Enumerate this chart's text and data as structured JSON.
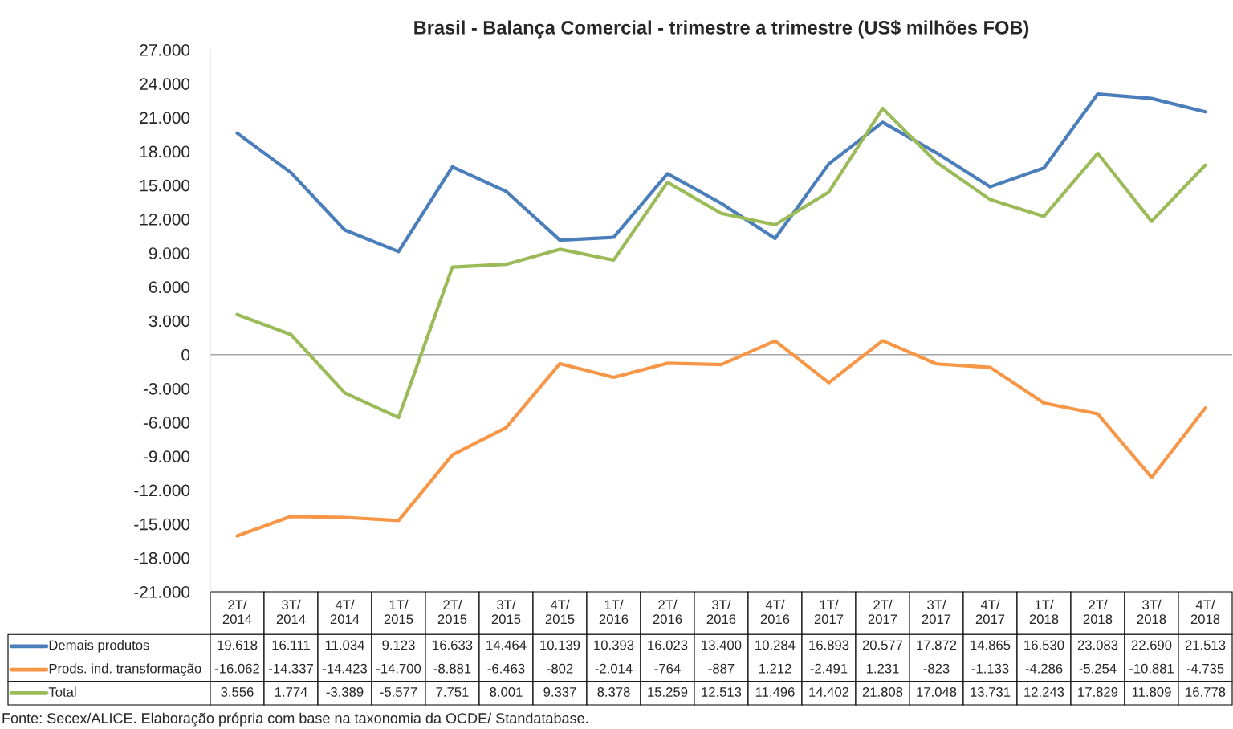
{
  "chart_data": {
    "type": "line",
    "title": "Brasil - Balança Comercial - trimestre a trimestre (US$ milhões FOB)",
    "categories": [
      "2T/\n2014",
      "3T/\n2014",
      "4T/\n2014",
      "1T/\n2015",
      "2T/\n2015",
      "3T/\n2015",
      "4T/\n2015",
      "1T/\n2016",
      "2T/\n2016",
      "3T/\n2016",
      "4T/\n2016",
      "1T/\n2017",
      "2T/\n2017",
      "3T/\n2017",
      "4T/\n2017",
      "1T/\n2018",
      "2T/\n2018",
      "3T/\n2018",
      "4T/\n2018"
    ],
    "series": [
      {
        "name": "Demais produtos",
        "color": "#4a7ebb",
        "values": [
          19618,
          16111,
          11034,
          9123,
          16633,
          14464,
          10139,
          10393,
          16023,
          13400,
          10284,
          16893,
          20577,
          17872,
          14865,
          16530,
          23083,
          22690,
          21513
        ],
        "value_labels": [
          "19.618",
          "16.111",
          "11.034",
          "9.123",
          "16.633",
          "14.464",
          "10.139",
          "10.393",
          "16.023",
          "13.400",
          "10.284",
          "16.893",
          "20.577",
          "17.872",
          "14.865",
          "16.530",
          "23.083",
          "22.690",
          "21.513"
        ]
      },
      {
        "name": "Prods. ind. transformação",
        "color": "#f79646",
        "values": [
          -16062,
          -14337,
          -14423,
          -14700,
          -8881,
          -6463,
          -802,
          -2014,
          -764,
          -887,
          1212,
          -2491,
          1231,
          -823,
          -1133,
          -4286,
          -5254,
          -10881,
          -4735
        ],
        "value_labels": [
          "-16.062",
          "-14.337",
          "-14.423",
          "-14.700",
          "-8.881",
          "-6.463",
          "-802",
          "-2.014",
          "-764",
          "-887",
          "1.212",
          "-2.491",
          "1.231",
          "-823",
          "-1.133",
          "-4.286",
          "-5.254",
          "-10.881",
          "-4.735"
        ]
      },
      {
        "name": "Total",
        "color": "#9bbb59",
        "values": [
          3556,
          1774,
          -3389,
          -5577,
          7751,
          8001,
          9337,
          8378,
          15259,
          12513,
          11496,
          14402,
          21808,
          17048,
          13731,
          12243,
          17829,
          11809,
          16778
        ],
        "value_labels": [
          "3.556",
          "1.774",
          "-3.389",
          "-5.577",
          "7.751",
          "8.001",
          "9.337",
          "8.378",
          "15.259",
          "12.513",
          "11.496",
          "14.402",
          "21.808",
          "17.048",
          "13.731",
          "12.243",
          "17.829",
          "11.809",
          "16.778"
        ]
      }
    ],
    "ylim": [
      -21000,
      27000
    ],
    "yticks": [
      {
        "value": -21000,
        "label": "-21.000"
      },
      {
        "value": -18000,
        "label": "-18.000"
      },
      {
        "value": -15000,
        "label": "-15.000"
      },
      {
        "value": -12000,
        "label": "-12.000"
      },
      {
        "value": -9000,
        "label": "-9.000"
      },
      {
        "value": -6000,
        "label": "-6.000"
      },
      {
        "value": -3000,
        "label": "-3.000"
      },
      0,
      {
        "value": 3000,
        "label": "3.000"
      },
      {
        "value": 6000,
        "label": "6.000"
      },
      {
        "value": 9000,
        "label": "9.000"
      },
      {
        "value": 12000,
        "label": "12.000"
      },
      {
        "value": 15000,
        "label": "15.000"
      },
      {
        "value": 18000,
        "label": "18.000"
      },
      {
        "value": 21000,
        "label": "21.000"
      },
      {
        "value": 24000,
        "label": "24.000"
      },
      {
        "value": 27000,
        "label": "27.000"
      }
    ],
    "ref_lines": [
      {
        "axis": "y",
        "value": 0,
        "color": "#a6a6a6"
      }
    ],
    "legend": "bottom",
    "grid": false,
    "marker": "none",
    "line_style": "solid",
    "annotations": [
      "Fonte: Secex/ALICE. Elaboração própria com base na taxonomia da OCDE/ Standatabase."
    ]
  }
}
